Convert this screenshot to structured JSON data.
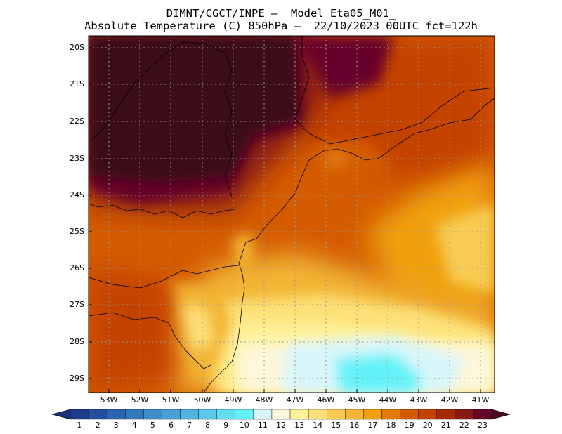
{
  "title": {
    "line1": "DIMNT/CGCT/INPE —  Model Eta05_M01_",
    "line2": "Absolute Temperature (C) 850hPa —  22/10/2023 00UTC fct=122h"
  },
  "map": {
    "lat_labels": [
      "20S",
      "21S",
      "22S",
      "23S",
      "24S",
      "25S",
      "26S",
      "27S",
      "28S",
      "29S"
    ],
    "lon_labels": [
      "53W",
      "52W",
      "51W",
      "50W",
      "49W",
      "48W",
      "47W",
      "46W",
      "45W",
      "44W",
      "43W",
      "42W",
      "41W"
    ],
    "gridlines": true
  },
  "colorbar": {
    "labels": [
      "1",
      "2",
      "3",
      "4",
      "5",
      "6",
      "7",
      "8",
      "9",
      "10",
      "11",
      "12",
      "13",
      "14",
      "15",
      "16",
      "17",
      "18",
      "19",
      "20",
      "21",
      "22",
      "23"
    ],
    "colors": [
      "#1f3c8c",
      "#22509f",
      "#2a64b0",
      "#3278bd",
      "#3c8cc8",
      "#46a0d3",
      "#50b4de",
      "#5ac8e6",
      "#64dcf0",
      "#62f2f8",
      "#d8f6fa",
      "#fdf7dc",
      "#fff29a",
      "#fde178",
      "#f8cc52",
      "#f3b636",
      "#f0a010",
      "#e37a08",
      "#d45b00",
      "#c44200",
      "#a42b00",
      "#881a14",
      "#66052a"
    ],
    "low_arrow_color": "#17327a",
    "high_arrow_color": "#4a0a22"
  }
}
